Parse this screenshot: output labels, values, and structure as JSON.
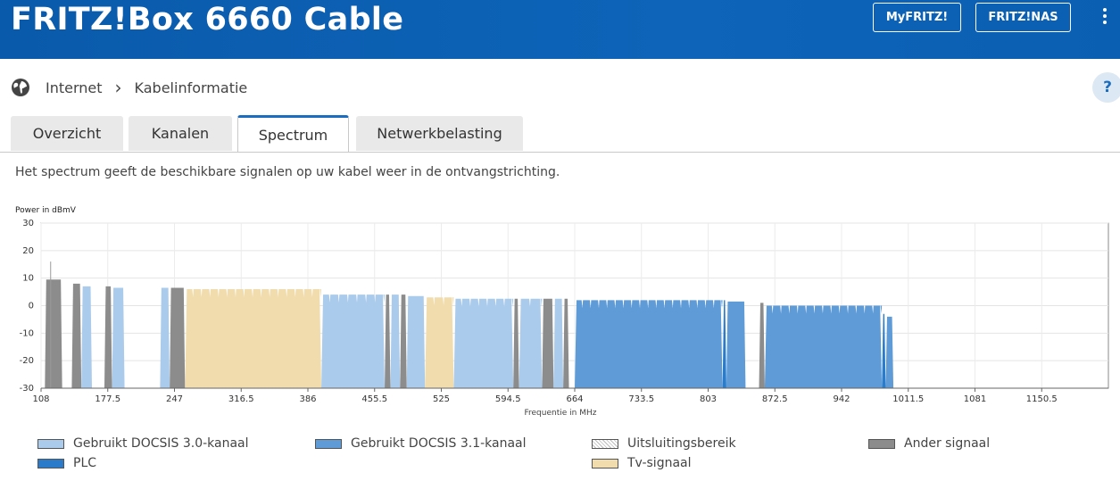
{
  "header": {
    "title": "FRITZ!Box 6660 Cable",
    "myfritz_label": "MyFRITZ!",
    "fritznas_label": "FRITZ!NAS"
  },
  "breadcrumb": {
    "root": "Internet",
    "separator": "›",
    "current": "Kabelinformatie",
    "help": "?"
  },
  "tabs": [
    "Overzicht",
    "Kanalen",
    "Spectrum",
    "Netwerkbelasting"
  ],
  "active_tab": "Spectrum",
  "description": "Het spectrum geeft de beschikbare signalen op uw kabel weer in de ontvangstrichting.",
  "colors": {
    "docsis30": "#aacbeb",
    "docsis31": "#5e9bd7",
    "plc": "#2a7ccb",
    "other": "#8c8c8c",
    "tv": "#f1dcae",
    "accent": "#1a6dc0"
  },
  "legend": {
    "docsis30": "Gebruikt DOCSIS 3.0-kanaal",
    "docsis31": "Gebruikt DOCSIS 3.1-kanaal",
    "exclusion": "Uitsluitingsbereik",
    "other": "Ander signaal",
    "plc": "PLC",
    "tv": "Tv-signaal"
  },
  "chart_data": {
    "type": "area",
    "ylabel": "Power in dBmV",
    "xlabel": "Frequentie in MHz",
    "ylim": [
      -30,
      30
    ],
    "yticks": [
      30,
      20,
      10,
      0,
      -10,
      -20,
      -30
    ],
    "xlim": [
      108,
      1220
    ],
    "xticks": [
      "108",
      "177.5",
      "247",
      "316.5",
      "386",
      "455.5",
      "525",
      "594.5",
      "664",
      "733.5",
      "803",
      "872.5",
      "942",
      "1011.5",
      "1081",
      "1150.5"
    ],
    "xtick_values": [
      108,
      177.5,
      247,
      316.5,
      386,
      455.5,
      525,
      594.5,
      664,
      733.5,
      803,
      872.5,
      942,
      1011.5,
      1081,
      1150.5
    ],
    "grid": true,
    "channels": [
      {
        "kind": "other",
        "from": 112,
        "to": 130,
        "level": 9.5
      },
      {
        "kind": "other",
        "from": 140,
        "to": 150,
        "level": 8
      },
      {
        "kind": "docsis30",
        "from": 150,
        "to": 161,
        "level": 7
      },
      {
        "kind": "other",
        "from": 174,
        "to": 182,
        "level": 7
      },
      {
        "kind": "docsis30",
        "from": 182,
        "to": 195,
        "level": 6.5
      },
      {
        "kind": "docsis30",
        "from": 232,
        "to": 242,
        "level": 6.5
      },
      {
        "kind": "other",
        "from": 242,
        "to": 258,
        "level": 6.5
      },
      {
        "kind": "tv",
        "from": 258,
        "to": 400,
        "level": 6
      },
      {
        "kind": "docsis30",
        "from": 400,
        "to": 466,
        "level": 4
      },
      {
        "kind": "other",
        "from": 466,
        "to": 472,
        "level": 4
      },
      {
        "kind": "docsis30",
        "from": 472,
        "to": 482,
        "level": 4
      },
      {
        "kind": "other",
        "from": 482,
        "to": 489,
        "level": 4
      },
      {
        "kind": "docsis30",
        "from": 489,
        "to": 508,
        "level": 3.5
      },
      {
        "kind": "tv",
        "from": 508,
        "to": 538,
        "level": 3
      },
      {
        "kind": "docsis30",
        "from": 538,
        "to": 600,
        "level": 2.5
      },
      {
        "kind": "other",
        "from": 600,
        "to": 606,
        "level": 2.5
      },
      {
        "kind": "docsis30",
        "from": 606,
        "to": 630,
        "level": 2.5
      },
      {
        "kind": "other",
        "from": 630,
        "to": 642,
        "level": 2.5
      },
      {
        "kind": "docsis30",
        "from": 642,
        "to": 652,
        "level": 2.5
      },
      {
        "kind": "other",
        "from": 652,
        "to": 658,
        "level": 2.5
      },
      {
        "kind": "docsis31",
        "from": 664,
        "to": 818,
        "level": 2
      },
      {
        "kind": "plc",
        "from": 818,
        "to": 822,
        "level": 2
      },
      {
        "kind": "docsis31",
        "from": 822,
        "to": 842,
        "level": 1.5
      },
      {
        "kind": "other",
        "from": 856,
        "to": 862,
        "level": 1
      },
      {
        "kind": "docsis31",
        "from": 862,
        "to": 984,
        "level": 0
      },
      {
        "kind": "plc",
        "from": 984,
        "to": 988,
        "level": -3
      },
      {
        "kind": "docsis31",
        "from": 988,
        "to": 996,
        "level": -4
      }
    ]
  }
}
